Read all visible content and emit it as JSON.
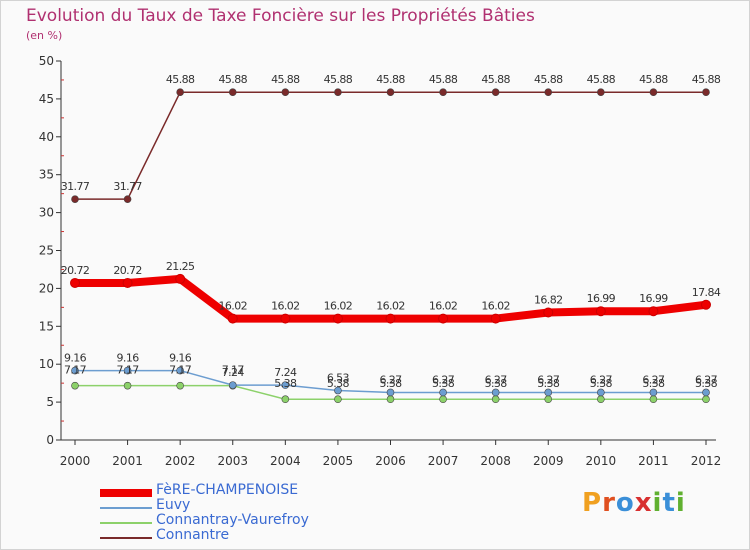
{
  "title": "Evolution du Taux de Taxe Foncière sur les Propriétés Bâties",
  "unit_label": "(en %)",
  "logo": {
    "text": "Proxiti",
    "letters": [
      "P",
      "r",
      "o",
      "x",
      "i",
      "t",
      "i"
    ],
    "colors": [
      "#f0a020",
      "#e05020",
      "#3a8fd8",
      "#d83030",
      "#60b030",
      "#3a8fd8",
      "#60b030"
    ]
  },
  "colors": {
    "title": "#b03070",
    "axis": "#333333",
    "grid_marks": "#cc3333",
    "legend_text": "#3a6ad2"
  },
  "chart_data": {
    "type": "line",
    "title": "Evolution du Taux de Taxe Foncière sur les Propriétés Bâties",
    "ylabel": "(en %)",
    "xlabel": "",
    "ylim": [
      0,
      50
    ],
    "yticks": [
      0,
      5,
      10,
      15,
      20,
      25,
      30,
      35,
      40,
      45,
      50
    ],
    "x": [
      "2000",
      "2001",
      "2002",
      "2003",
      "2004",
      "2005",
      "2006",
      "2007",
      "2008",
      "2009",
      "2010",
      "2011",
      "2012"
    ],
    "series": [
      {
        "name": "FèRE-CHAMPENOISE",
        "color": "#ee0000",
        "labels": [
          "20.72",
          "20.72",
          "21.25",
          "16.02",
          "16.02",
          "16.02",
          "16.02",
          "16.02",
          "16.02",
          "16.82",
          "16.99",
          "16.99",
          "17.84"
        ],
        "values": [
          20.72,
          20.72,
          21.25,
          16.02,
          16.02,
          16.02,
          16.02,
          16.02,
          16.02,
          16.82,
          16.99,
          16.99,
          17.84
        ]
      },
      {
        "name": "Euvy",
        "color": "#6c9dd0",
        "labels": [
          "9.16",
          "9.16",
          "9.16",
          "7.24",
          "7.24",
          "6.53",
          "6.27",
          "6.27",
          "6.27",
          "6.27",
          "6.27",
          "6.27",
          "6.27"
        ],
        "values": [
          9.16,
          9.16,
          9.16,
          7.24,
          7.24,
          6.53,
          6.27,
          6.27,
          6.27,
          6.27,
          6.27,
          6.27,
          6.27
        ]
      },
      {
        "name": "Connantray-Vaurefroy",
        "color": "#8cd16a",
        "labels": [
          "7.17",
          "7.17",
          "7.17",
          "7.17",
          "5.38",
          "5.38",
          "5.38",
          "5.38",
          "5.38",
          "5.38",
          "5.38",
          "5.38",
          "5.38"
        ],
        "values": [
          7.17,
          7.17,
          7.17,
          7.17,
          5.38,
          5.38,
          5.38,
          5.38,
          5.38,
          5.38,
          5.38,
          5.38,
          5.38
        ]
      },
      {
        "name": "Connantre",
        "color": "#7a2a2a",
        "labels": [
          "31.77",
          "31.77",
          "45.88",
          "45.88",
          "45.88",
          "45.88",
          "45.88",
          "45.88",
          "45.88",
          "45.88",
          "45.88",
          "45.88",
          "45.88"
        ],
        "values": [
          31.77,
          31.77,
          45.88,
          45.88,
          45.88,
          45.88,
          45.88,
          45.88,
          45.88,
          45.88,
          45.88,
          45.88,
          45.88
        ]
      }
    ]
  }
}
